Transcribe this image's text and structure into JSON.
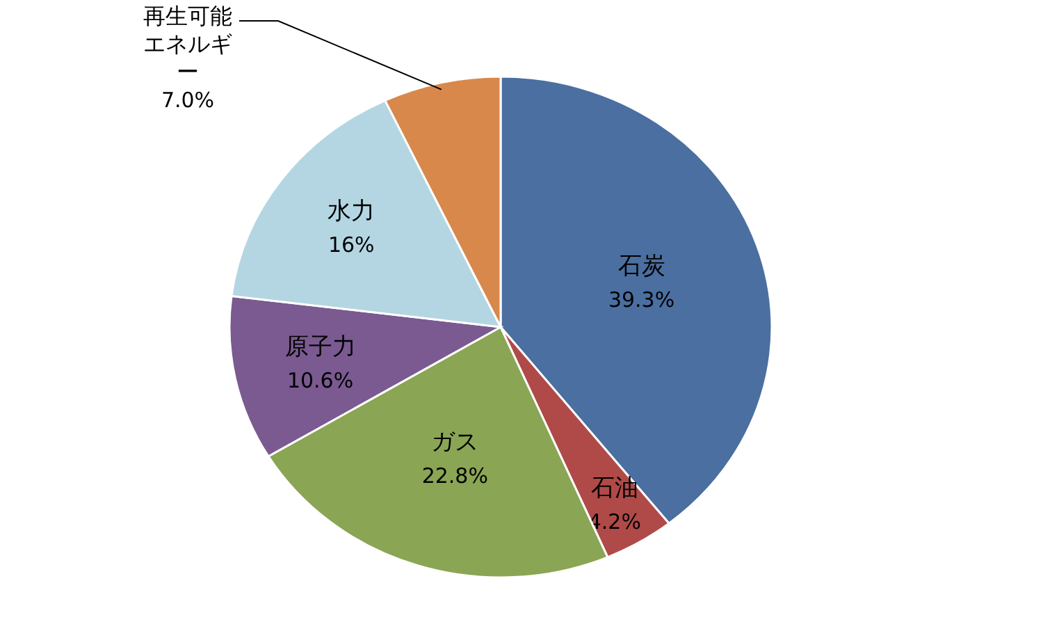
{
  "chart_data": {
    "type": "pie",
    "categories": [
      "石炭",
      "石油",
      "ガス",
      "原子力",
      "水力",
      "再生可能エネルギー"
    ],
    "values": [
      39.3,
      4.2,
      22.8,
      10.6,
      16,
      7.0
    ],
    "colors": [
      "#4a6fa0",
      "#b04a48",
      "#8aa554",
      "#7a5a90",
      "#b3d6e2",
      "#d8884a"
    ],
    "value_labels": [
      "39.3%",
      "4.2%",
      "22.8%",
      "10.6%",
      "16%",
      "7.0%"
    ]
  }
}
